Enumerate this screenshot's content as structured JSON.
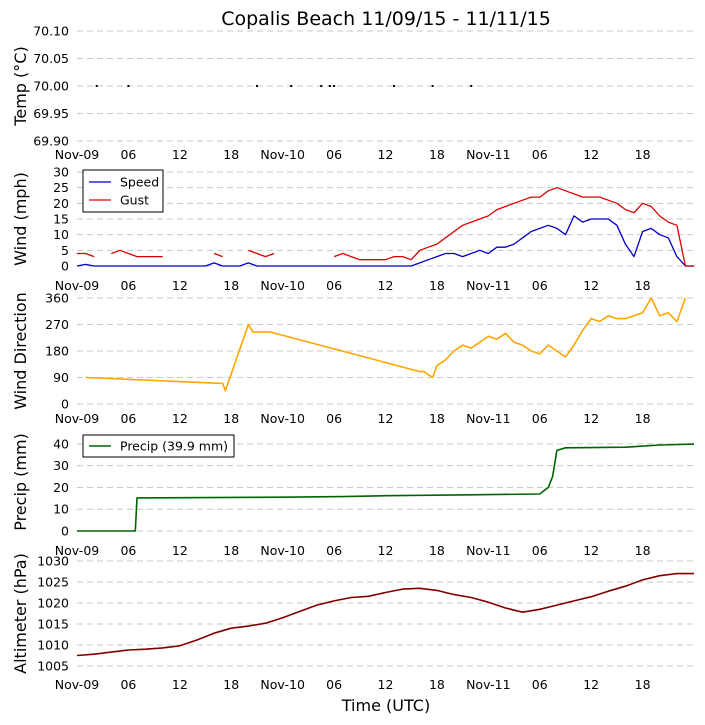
{
  "title": "Copalis Beach 11/09/15 - 11/11/15",
  "xlabel": "Time (UTC)",
  "x_ticks": [
    "Nov-09",
    "06",
    "12",
    "18",
    "Nov-10",
    "06",
    "12",
    "18",
    "Nov-11",
    "06",
    "12",
    "18"
  ],
  "x_range_hours": [
    0,
    72
  ],
  "colors": {
    "speed": "#0000cc",
    "gust": "#dd0000",
    "dir": "#ffa500",
    "precip": "#006400",
    "alt": "#800000",
    "temp": "#000000"
  },
  "chart_data": [
    {
      "type": "scatter",
      "id": "temp",
      "ylabel": "Temp (°C)",
      "ylim": [
        69.9,
        70.1
      ],
      "yticks": [
        "70.10",
        "70.05",
        "70.00",
        "69.95",
        "69.90"
      ],
      "ytick_values": [
        70.1,
        70.05,
        70.0,
        69.95,
        69.9
      ],
      "x": [
        2.3,
        6,
        21,
        25,
        28.5,
        29.5,
        30,
        37,
        41.5,
        46
      ],
      "values": [
        70.0,
        70.0,
        70.0,
        70.0,
        70.0,
        70.0,
        70.0,
        70.0,
        70.0,
        70.0
      ]
    },
    {
      "type": "line",
      "id": "wind",
      "ylabel": "Wind (mph)",
      "ylim": [
        0,
        30
      ],
      "yticks": [
        "30",
        "25",
        "20",
        "15",
        "10",
        "5",
        "0"
      ],
      "ytick_values": [
        30,
        25,
        20,
        15,
        10,
        5,
        0
      ],
      "legend": "top-left",
      "x": [
        0,
        1,
        2,
        3,
        4,
        5,
        6,
        7,
        8,
        9,
        10,
        11,
        12,
        13,
        14,
        15,
        16,
        17,
        18,
        19,
        20,
        21,
        22,
        23,
        24,
        25,
        26,
        27,
        28,
        29,
        30,
        31,
        32,
        33,
        34,
        35,
        36,
        37,
        38,
        39,
        40,
        41,
        42,
        43,
        44,
        45,
        46,
        47,
        48,
        49,
        50,
        51,
        52,
        53,
        54,
        55,
        56,
        57,
        58,
        59,
        60,
        61,
        62,
        63,
        64,
        65,
        66,
        67,
        68,
        69,
        70,
        71,
        72
      ],
      "series": [
        {
          "name": "Speed",
          "values": [
            0,
            0.5,
            0,
            0,
            0,
            0,
            0,
            0,
            0,
            0,
            0,
            0,
            0,
            0,
            0,
            0,
            1,
            0,
            0,
            0,
            1,
            0,
            0,
            0,
            0,
            0,
            0,
            0,
            0,
            0,
            0,
            0,
            0,
            0,
            0,
            0,
            0,
            0,
            0,
            0,
            1,
            2,
            3,
            4,
            4,
            3,
            4,
            5,
            4,
            6,
            6,
            7,
            9,
            11,
            12,
            13,
            12,
            10,
            16,
            14,
            15,
            15,
            15,
            13,
            7,
            3,
            11,
            12,
            10,
            9,
            3,
            0,
            0
          ]
        },
        {
          "name": "Gust",
          "values": [
            4,
            4,
            3,
            null,
            4,
            5,
            4,
            3,
            3,
            3,
            3,
            null,
            null,
            3,
            null,
            null,
            4,
            3,
            null,
            null,
            5,
            4,
            3,
            4,
            null,
            null,
            null,
            null,
            null,
            null,
            3,
            4,
            3,
            2,
            2,
            2,
            2,
            3,
            3,
            2,
            5,
            6,
            7,
            9,
            11,
            13,
            14,
            15,
            16,
            18,
            19,
            20,
            21,
            22,
            22,
            24,
            25,
            24,
            23,
            22,
            22,
            22,
            21,
            20,
            18,
            17,
            20,
            19,
            16,
            14,
            13,
            0,
            0
          ]
        }
      ]
    },
    {
      "type": "line",
      "id": "direction",
      "ylabel": "Wind Direction",
      "ylim": [
        0,
        360
      ],
      "yticks": [
        "360",
        "270",
        "180",
        "90",
        "0"
      ],
      "ytick_values": [
        360,
        270,
        180,
        90,
        0
      ],
      "x": [
        1,
        17,
        17.3,
        20,
        20.5,
        21.5,
        22,
        22.5,
        40,
        40.5,
        41.5,
        42,
        43,
        44,
        45,
        46,
        47,
        48,
        49,
        50,
        51,
        52,
        53,
        54,
        55,
        56,
        57,
        58,
        59,
        60,
        61,
        62,
        63,
        64,
        65,
        66,
        67,
        68,
        69,
        70,
        71
      ],
      "values": [
        90,
        70,
        45,
        270,
        245,
        245,
        245,
        245,
        110,
        110,
        90,
        130,
        150,
        180,
        200,
        190,
        210,
        230,
        220,
        240,
        210,
        200,
        180,
        170,
        200,
        180,
        160,
        200,
        250,
        290,
        280,
        300,
        290,
        290,
        300,
        310,
        360,
        300,
        310,
        280,
        360
      ]
    },
    {
      "type": "line",
      "id": "precip",
      "ylabel": "Precip (mm)",
      "ylim": [
        0,
        45
      ],
      "yticks": [
        "40",
        "30",
        "20",
        "10",
        "0"
      ],
      "ytick_values": [
        40,
        30,
        20,
        10,
        0
      ],
      "legend_label": "Precip (39.9 mm)",
      "legend": "top-left",
      "x": [
        0,
        6.8,
        7,
        24,
        31,
        36,
        46,
        54,
        55,
        55.5,
        56,
        57,
        60,
        64,
        68,
        72
      ],
      "values": [
        0,
        0,
        15.2,
        15.5,
        15.8,
        16.2,
        16.6,
        17,
        20,
        25,
        37,
        38.2,
        38.3,
        38.5,
        39.5,
        39.9
      ]
    },
    {
      "type": "line",
      "id": "altimeter",
      "ylabel": "Altimeter (hPa)",
      "ylim": [
        1005,
        1030
      ],
      "yticks": [
        "1030",
        "1025",
        "1020",
        "1015",
        "1010",
        "1005"
      ],
      "ytick_values": [
        1030,
        1025,
        1020,
        1015,
        1010,
        1005
      ],
      "x": [
        0,
        2,
        4,
        6,
        8,
        10,
        12,
        14,
        16,
        18,
        20,
        22,
        24,
        26,
        28,
        30,
        32,
        34,
        36,
        38,
        40,
        42,
        44,
        46,
        48,
        50,
        52,
        54,
        56,
        58,
        60,
        62,
        64,
        66,
        68,
        70,
        72
      ],
      "values": [
        1007.5,
        1007.8,
        1008.3,
        1008.8,
        1009.0,
        1009.3,
        1009.8,
        1011.2,
        1012.8,
        1014.0,
        1014.5,
        1015.2,
        1016.5,
        1018.0,
        1019.5,
        1020.5,
        1021.3,
        1021.6,
        1022.5,
        1023.3,
        1023.5,
        1023.0,
        1022.0,
        1021.3,
        1020.2,
        1018.8,
        1017.8,
        1018.5,
        1019.5,
        1020.5,
        1021.5,
        1022.8,
        1024.0,
        1025.5,
        1026.5,
        1027.0,
        1027.0
      ]
    }
  ]
}
